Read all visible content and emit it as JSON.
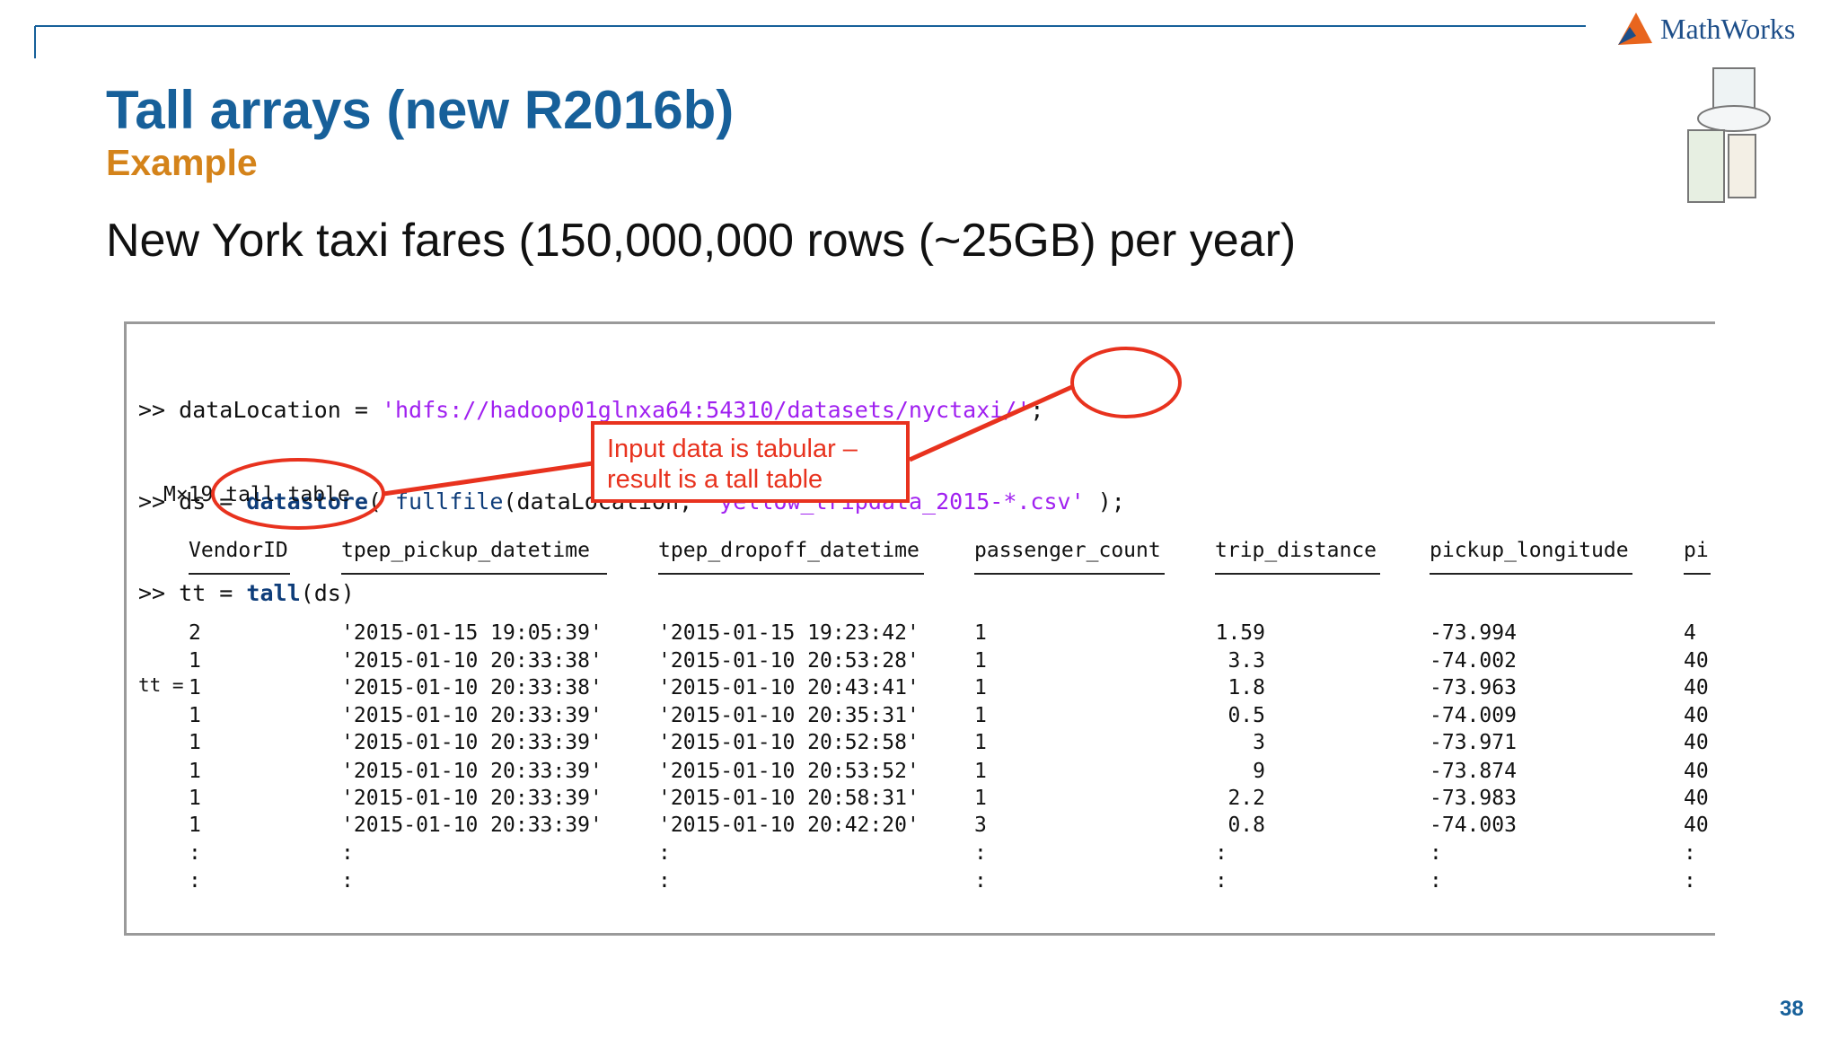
{
  "header": {
    "title": "Tall arrays (new R2016b)",
    "subtitle": "Example",
    "logo": "MathWorks",
    "page_number": "38"
  },
  "heading": "New York taxi fares (150,000,000 rows (~25GB) per year)",
  "code": {
    "lines": [
      [
        ">> dataLocation = ",
        "'hdfs://hadoop01glnxa64:54310/datasets/nyctaxi/'",
        ";"
      ],
      [
        ">> ds = ",
        "datastore",
        "( ",
        "fullfile",
        "(dataLocation, ",
        "'yellow_tripdata_2015-*.csv'",
        " );"
      ],
      [
        ">> tt = ",
        "tall",
        "(ds)"
      ],
      [
        "tt ="
      ],
      [
        "M×19 tall table"
      ]
    ]
  },
  "callout": {
    "line1": "Input data is tabular –",
    "line2": "result is a tall table"
  },
  "table": {
    "columns": [
      "VendorID",
      "tpep_pickup_datetime",
      "tpep_dropoff_datetime",
      "passenger_count",
      "trip_distance",
      "pickup_longitude",
      "pi"
    ],
    "rows": [
      [
        "2",
        "'2015-01-15 19:05:39'",
        "'2015-01-15 19:23:42'",
        "1",
        "1.59",
        "-73.994",
        "4"
      ],
      [
        "1",
        "'2015-01-10 20:33:38'",
        "'2015-01-10 20:53:28'",
        "1",
        "3.3",
        "-74.002",
        "40"
      ],
      [
        "1",
        "'2015-01-10 20:33:38'",
        "'2015-01-10 20:43:41'",
        "1",
        "1.8",
        "-73.963",
        "40"
      ],
      [
        "1",
        "'2015-01-10 20:33:39'",
        "'2015-01-10 20:35:31'",
        "1",
        "0.5",
        "-74.009",
        "40"
      ],
      [
        "1",
        "'2015-01-10 20:33:39'",
        "'2015-01-10 20:52:58'",
        "1",
        "3",
        "-73.971",
        "40"
      ],
      [
        "1",
        "'2015-01-10 20:33:39'",
        "'2015-01-10 20:53:52'",
        "1",
        "9",
        "-73.874",
        "40"
      ],
      [
        "1",
        "'2015-01-10 20:33:39'",
        "'2015-01-10 20:58:31'",
        "1",
        "2.2",
        "-73.983",
        "40"
      ],
      [
        "1",
        "'2015-01-10 20:33:39'",
        "'2015-01-10 20:42:20'",
        "3",
        "0.8",
        "-74.003",
        "40."
      ],
      [
        ":",
        ":",
        ":",
        ":",
        ":",
        ":",
        ":"
      ],
      [
        ":",
        ":",
        ":",
        ":",
        ":",
        ":",
        ":"
      ]
    ]
  }
}
